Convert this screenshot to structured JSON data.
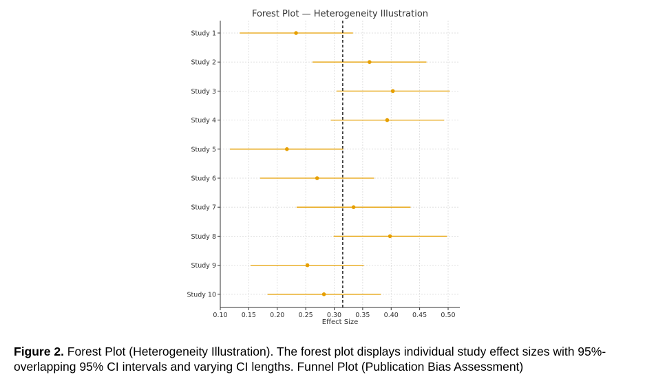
{
  "chart_data": {
    "type": "scatter",
    "title": "Forest Plot — Heterogeneity Illustration",
    "xlabel": "Effect Size",
    "ylabel": "",
    "xlim": [
      0.1,
      0.51
    ],
    "xticks": [
      "0.10",
      "0.15",
      "0.20",
      "0.25",
      "0.30",
      "0.35",
      "0.40",
      "0.45",
      "0.50"
    ],
    "reference_line": 0.315,
    "grid": true,
    "marker_color": "#e69f00",
    "categories": [
      "Study 1",
      "Study 2",
      "Study 3",
      "Study 4",
      "Study 5",
      "Study 6",
      "Study 7",
      "Study 8",
      "Study 9",
      "Study 10"
    ],
    "estimates": [
      0.233,
      0.362,
      0.403,
      0.393,
      0.217,
      0.27,
      0.334,
      0.398,
      0.253,
      0.282
    ],
    "ci_lower": [
      0.134,
      0.262,
      0.304,
      0.294,
      0.117,
      0.17,
      0.234,
      0.299,
      0.153,
      0.183
    ],
    "ci_upper": [
      0.333,
      0.462,
      0.503,
      0.493,
      0.316,
      0.37,
      0.434,
      0.498,
      0.352,
      0.382
    ]
  },
  "caption": {
    "label": "Figure 2.",
    "text": " Forest Plot (Heterogeneity Illustration). The forest plot displays individual study effect sizes with 95%-overlapping 95% CI intervals and varying CI lengths. Funnel Plot (Publication Bias Assessment)"
  }
}
